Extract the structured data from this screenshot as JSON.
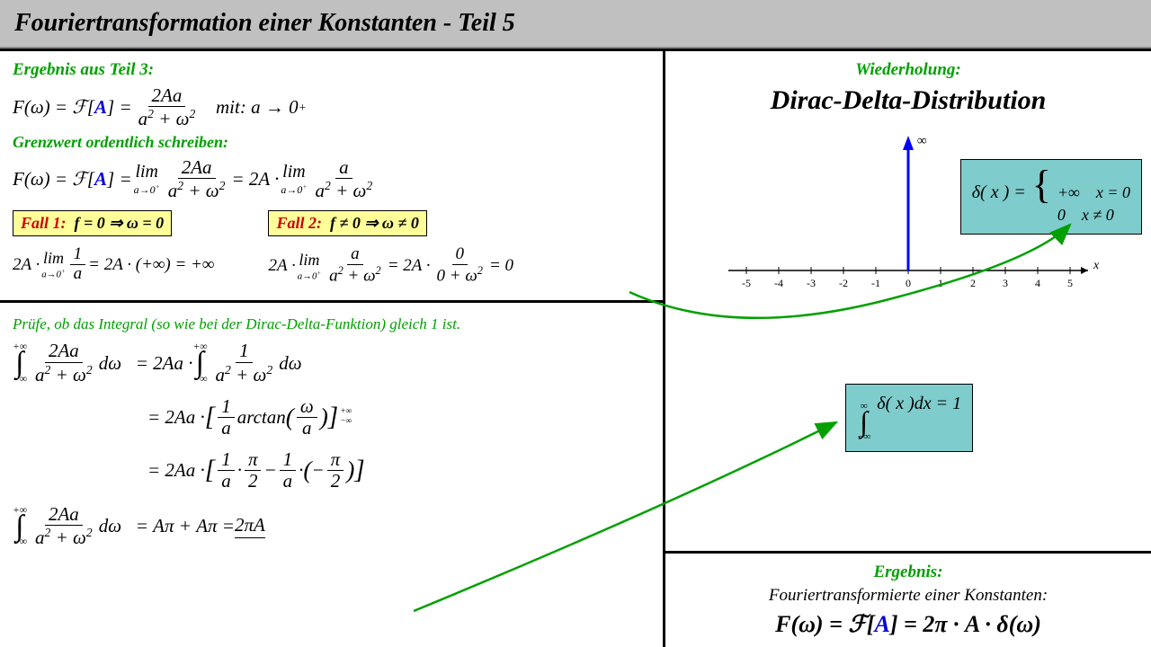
{
  "header": {
    "title": "Fouriertransformation einer Konstanten - Teil 5"
  },
  "panel1": {
    "h1": "Ergebnis aus Teil 3:",
    "mit_label": "mit:  a → 0",
    "h2": "Grenzwert ordentlich schreiben:",
    "fall1": "Fall 1:",
    "fall1_cond": "f = 0  ⇒  ω = 0",
    "fall2": "Fall 2:",
    "fall2_cond": "f ≠ 0  ⇒  ω ≠ 0"
  },
  "panel2": {
    "heading": "Prüfe, ob das Integral (so wie bei der Dirac-Delta-Funktion) gleich 1 ist."
  },
  "right": {
    "wiederholung": "Wiederholung:",
    "dirac_title": "Dirac-Delta-Distribution",
    "infinity": "∞",
    "delta_def_lhs": "δ( x ) =",
    "case1_val": "+∞",
    "case1_cond": "x = 0",
    "case2_val": "0",
    "case2_cond": "x ≠ 0",
    "integral_eq": "δ( x )dx = 1",
    "ergebnis": "Ergebnis:",
    "subtitle": "Fouriertransformierte einer Konstanten:",
    "ticks": [
      "-5",
      "-4",
      "-3",
      "-2",
      "-1",
      "0",
      "1",
      "2",
      "3",
      "4",
      "5"
    ],
    "axis_label_x": "x"
  },
  "colors": {
    "green": "#00a000",
    "blue": "#0000e0",
    "red": "#cc0000",
    "yellow_box": "#ffff99",
    "teal_box": "#7fcccc",
    "header_bg": "#c0c0c0",
    "arrow_green": "#00a000",
    "axis_blue": "#0000ff"
  }
}
